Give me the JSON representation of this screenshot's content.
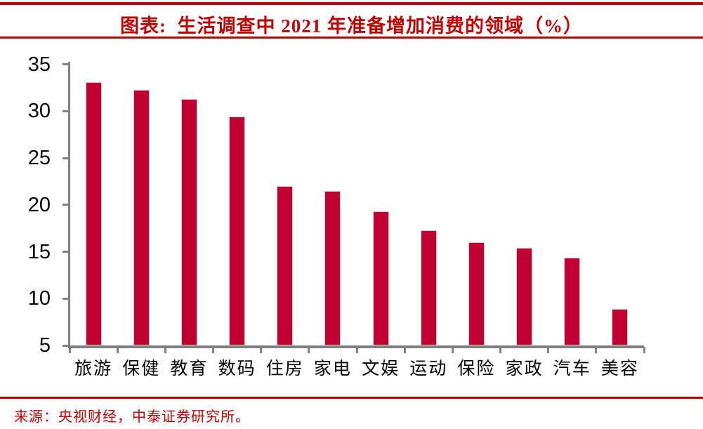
{
  "header": {
    "title": "图表:  生活调查中 2021 年准备增加消费的领域（%）"
  },
  "chart_data": {
    "type": "bar",
    "title": "生活调查中 2021 年准备增加消费的领域（%）",
    "categories": [
      "旅游",
      "保健",
      "教育",
      "数码",
      "住房",
      "家电",
      "文娱",
      "运动",
      "保险",
      "家政",
      "汽车",
      "美容"
    ],
    "values": [
      33.1,
      32.3,
      31.3,
      29.4,
      22.0,
      21.5,
      19.3,
      17.3,
      16.0,
      15.4,
      14.4,
      8.9
    ],
    "unit": "%",
    "xlabel": "",
    "ylabel": "",
    "ylim": [
      5,
      35
    ],
    "yticks": [
      35,
      30,
      25,
      20,
      15,
      10,
      5
    ],
    "grid": false,
    "legend": false,
    "bar_color": "#C00030",
    "axis_color": "#808080"
  },
  "footer": {
    "source": "来源：央视财经，中泰证券研究所。"
  },
  "colors": {
    "accent_red": "#C00000",
    "bar_red": "#C00030",
    "axis_gray": "#808080",
    "text_black": "#000000"
  }
}
